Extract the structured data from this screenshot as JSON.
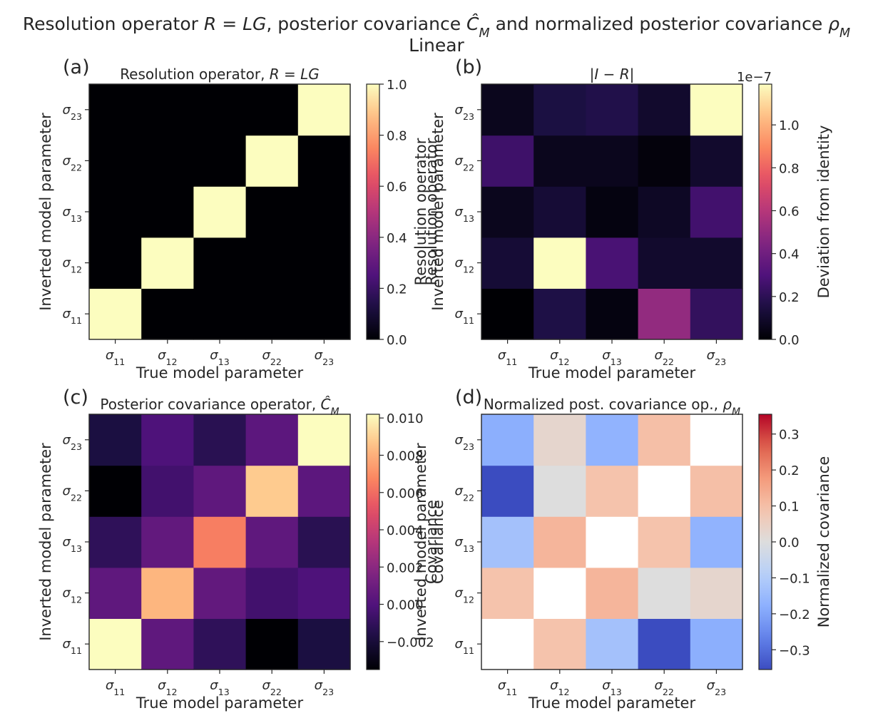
{
  "figure": {
    "title": "Resolution operator $R = LG$, posterior covariance $\\hat{C}_M$ and normalized posterior covariance $\\rho_M$",
    "subtitle": "Linear"
  },
  "chart_data": [
    {
      "panel": "(a)",
      "type": "heatmap",
      "title": "Resolution operator, $R = LG$",
      "xlabel": "True model parameter",
      "ylabel": "Inverted model parameter",
      "x_categories": [
        "σ11",
        "σ12",
        "σ13",
        "σ22",
        "σ23"
      ],
      "y_categories": [
        "σ11",
        "σ12",
        "σ13",
        "σ22",
        "σ23"
      ],
      "colormap": "magma",
      "colorbar_label": "Resolution operator",
      "colorbar_range": [
        0.0,
        1.0
      ],
      "colorbar_ticks": [
        "0.0",
        "0.2",
        "0.4",
        "0.6",
        "0.8",
        "1.0"
      ],
      "colorbar_offset": "",
      "values": [
        [
          1.0,
          0.0,
          0.0,
          0.0,
          0.0
        ],
        [
          0.0,
          1.0,
          0.0,
          0.0,
          0.0
        ],
        [
          0.0,
          0.0,
          1.0,
          0.0,
          0.0
        ],
        [
          0.0,
          0.0,
          0.0,
          1.0,
          0.0
        ],
        [
          0.0,
          0.0,
          0.0,
          0.0,
          1.0
        ]
      ]
    },
    {
      "panel": "(b)",
      "type": "heatmap",
      "title": "$|I - R|$",
      "xlabel": "True model parameter",
      "ylabel": "Resolution operator\nInverted model parameter",
      "x_categories": [
        "σ11",
        "σ12",
        "σ13",
        "σ22",
        "σ23"
      ],
      "y_categories": [
        "σ11",
        "σ12",
        "σ13",
        "σ22",
        "σ23"
      ],
      "colormap": "magma",
      "colorbar_label": "Deviation from identity",
      "colorbar_range": [
        0.0,
        1.19e-07
      ],
      "colorbar_ticks": [
        "0.0",
        "0.2",
        "0.4",
        "0.6",
        "0.8",
        "1.0"
      ],
      "colorbar_offset": "1e−7",
      "values": [
        [
          0.0,
          1.6e-08,
          3e-09,
          5e-08,
          2.2e-08
        ],
        [
          1.2e-08,
          1.19e-07,
          2.8e-08,
          1e-08,
          1e-08
        ],
        [
          6e-09,
          1.2e-08,
          3e-09,
          8e-09,
          2.6e-08
        ],
        [
          2.5e-08,
          6e-09,
          6e-09,
          2e-09,
          1e-08
        ],
        [
          6e-09,
          1.5e-08,
          1.7e-08,
          1e-08,
          1.19e-07
        ]
      ]
    },
    {
      "panel": "(c)",
      "type": "heatmap",
      "title": "Posterior covariance operator, $\\hat{C}_M$",
      "xlabel": "True model parameter",
      "ylabel": "Inverted model parameter",
      "x_categories": [
        "σ11",
        "σ12",
        "σ13",
        "σ22",
        "σ23"
      ],
      "y_categories": [
        "σ11",
        "σ12",
        "σ13",
        "σ22",
        "σ23"
      ],
      "colormap": "magma",
      "colorbar_label": "Covariance",
      "colorbar_range": [
        -0.0035,
        0.0102
      ],
      "colorbar_ticks": [
        "−0.002",
        "0.000",
        "0.002",
        "0.004",
        "0.006",
        "0.008",
        "0.010"
      ],
      "colorbar_offset": "",
      "values": [
        [
          0.0102,
          0.0005,
          -0.0011,
          -0.0035,
          -0.0018
        ],
        [
          0.0005,
          0.0082,
          0.0006,
          -0.0005,
          -0.0001
        ],
        [
          -0.0011,
          0.0006,
          0.0065,
          0.0005,
          -0.0013
        ],
        [
          -0.0035,
          -0.0005,
          0.0005,
          0.0088,
          0.0004
        ],
        [
          -0.0018,
          -0.0001,
          -0.0013,
          0.0004,
          0.0102
        ]
      ]
    },
    {
      "panel": "(d)",
      "type": "heatmap",
      "title": "Normalized post. covariance op., $\\rho_M$",
      "xlabel": "True model parameter",
      "ylabel": "Inverted model parameter\nCovariance",
      "x_categories": [
        "σ11",
        "σ12",
        "σ13",
        "σ22",
        "σ23"
      ],
      "y_categories": [
        "σ11",
        "σ12",
        "σ13",
        "σ22",
        "σ23"
      ],
      "colormap": "coolwarm",
      "colorbar_label": "Normalized covariance",
      "colorbar_range": [
        -0.355,
        0.355
      ],
      "colorbar_ticks": [
        "−0.3",
        "−0.2",
        "−0.1",
        "0.0",
        "0.1",
        "0.2",
        "0.3"
      ],
      "colorbar_offset": "",
      "diagonal_masked": true,
      "values": [
        [
          null,
          0.09,
          -0.13,
          -0.36,
          -0.18
        ],
        [
          0.09,
          null,
          0.12,
          0.0,
          0.03
        ],
        [
          -0.13,
          0.12,
          null,
          0.09,
          -0.17
        ],
        [
          -0.36,
          0.0,
          0.09,
          null,
          0.1
        ],
        [
          -0.18,
          0.03,
          -0.17,
          0.1,
          null
        ]
      ]
    }
  ]
}
